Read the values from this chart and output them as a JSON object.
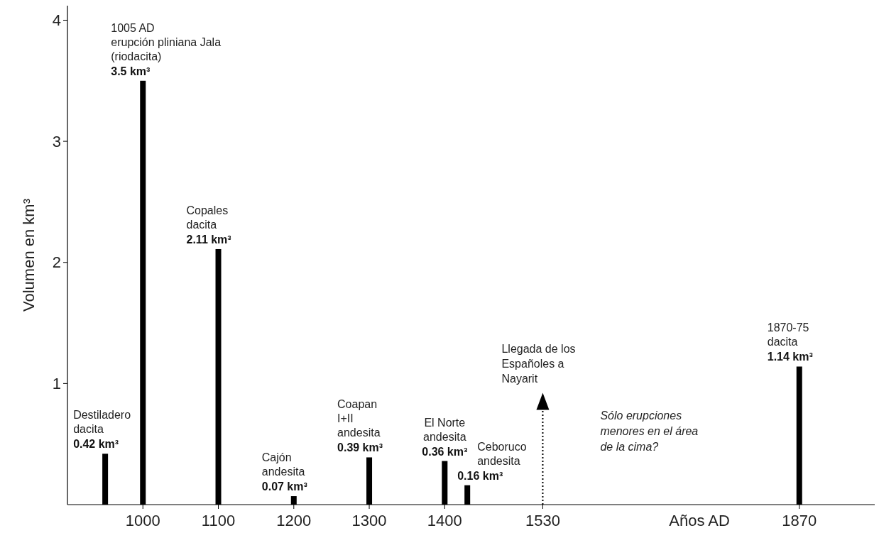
{
  "chart_data": {
    "type": "bar",
    "xlabel": "Años AD",
    "ylabel": "Volumen en km³",
    "x": [
      950,
      1000,
      1100,
      1200,
      1300,
      1400,
      1430,
      1870
    ],
    "values": [
      0.42,
      3.5,
      2.11,
      0.07,
      0.39,
      0.36,
      0.16,
      1.14
    ],
    "value_labels": [
      "0.42 km³",
      "3.5 km³",
      "2.11 km³",
      "0.07 km³",
      "0.39 km³",
      "0.36 km³",
      "0.16 km³",
      "1.14 km³"
    ],
    "color": "#000000",
    "xlim": [
      900,
      1970
    ],
    "xticks": [
      1000,
      1100,
      1200,
      1300,
      1400,
      1530,
      1870
    ],
    "ylim": [
      0,
      4.12
    ],
    "yticks": [
      1,
      2,
      3,
      4
    ],
    "grid": false,
    "ref_lines": [
      {
        "axis": "x",
        "value": 1530,
        "label": "Llegada de los\nEspañoles a\nNayarit",
        "line_style": "dotted",
        "color": "#000000"
      }
    ],
    "annotations": [
      {
        "text": "Destiladero\ndacita",
        "x": 950,
        "y": 0.42
      },
      {
        "text": "1005 AD\nerupción pliniana Jala\n(riodacita)",
        "x": 1000,
        "y": 3.5
      },
      {
        "text": "Copales\ndacita",
        "x": 1100,
        "y": 2.11
      },
      {
        "text": "Cajón\nandesita",
        "x": 1200,
        "y": 0.07
      },
      {
        "text": "Coapan\nI+II\nandesita",
        "x": 1300,
        "y": 0.39
      },
      {
        "text": "El Norte\nandesita",
        "x": 1400,
        "y": 0.36
      },
      {
        "text": "Ceboruco\nandesita",
        "x": 1430,
        "y": 0.16
      },
      {
        "text": "1870-75\ndacita",
        "x": 1870,
        "y": 1.14
      },
      "Sólo erupciones\nmenores en el área\nde la cima?"
    ]
  }
}
